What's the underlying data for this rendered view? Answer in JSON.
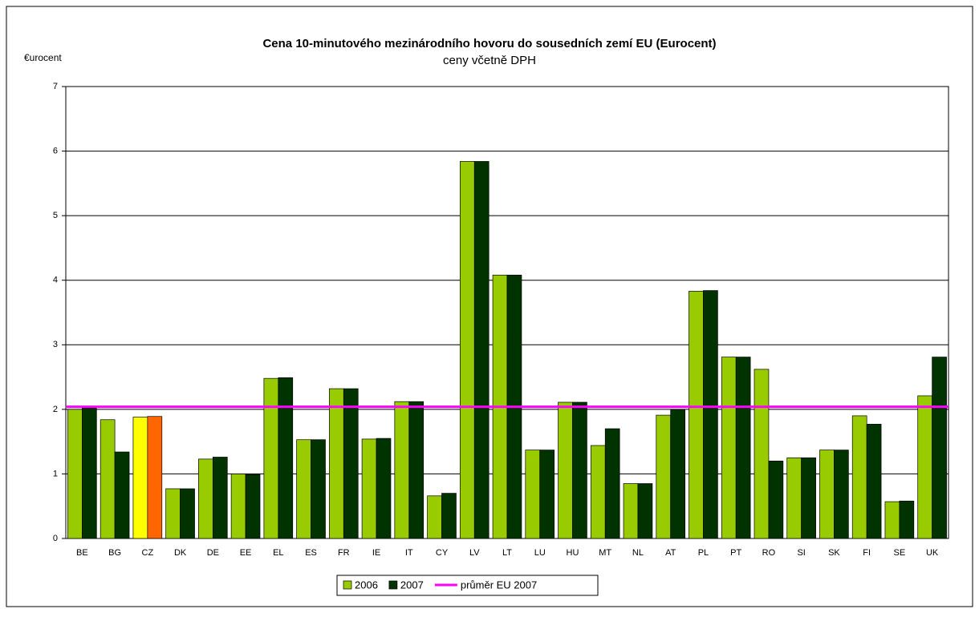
{
  "chart_data": {
    "type": "bar",
    "title": "Cena 10-minutového mezinárodního hovoru do sousedních zemí EU (Eurocent)",
    "subtitle": "ceny včetně DPH",
    "y_label": "€urocent",
    "categories": [
      "BE",
      "BG",
      "CZ",
      "DK",
      "DE",
      "EE",
      "EL",
      "ES",
      "FR",
      "IE",
      "IT",
      "CY",
      "LV",
      "LT",
      "LU",
      "HU",
      "MT",
      "NL",
      "AT",
      "PL",
      "PT",
      "RO",
      "SI",
      "SK",
      "FI",
      "SE",
      "UK"
    ],
    "series": [
      {
        "name": "2006",
        "color": "#99cc00",
        "colors": [
          "#99cc00",
          "#99cc00",
          "#ffff00",
          "#99cc00",
          "#99cc00",
          "#99cc00",
          "#99cc00",
          "#99cc00",
          "#99cc00",
          "#99cc00",
          "#99cc00",
          "#99cc00",
          "#99cc00",
          "#99cc00",
          "#99cc00",
          "#99cc00",
          "#99cc00",
          "#99cc00",
          "#99cc00",
          "#99cc00",
          "#99cc00",
          "#99cc00",
          "#99cc00",
          "#99cc00",
          "#99cc00",
          "#99cc00",
          "#99cc00"
        ],
        "values": [
          2.0,
          1.84,
          1.88,
          0.77,
          1.23,
          1.0,
          2.48,
          1.53,
          2.32,
          1.54,
          2.12,
          0.66,
          5.84,
          4.08,
          1.37,
          2.11,
          1.44,
          0.85,
          1.91,
          3.83,
          2.81,
          2.62,
          1.25,
          1.37,
          1.9,
          0.57,
          2.21
        ]
      },
      {
        "name": "2007",
        "color": "#003300",
        "colors": [
          "#003300",
          "#003300",
          "#ff6600",
          "#003300",
          "#003300",
          "#003300",
          "#003300",
          "#003300",
          "#003300",
          "#003300",
          "#003300",
          "#003300",
          "#003300",
          "#003300",
          "#003300",
          "#003300",
          "#003300",
          "#003300",
          "#003300",
          "#003300",
          "#003300",
          "#003300",
          "#003300",
          "#003300",
          "#003300",
          "#003300",
          "#003300"
        ],
        "values": [
          2.02,
          1.34,
          1.89,
          0.77,
          1.26,
          0.99,
          2.49,
          1.53,
          2.32,
          1.55,
          2.12,
          0.7,
          5.84,
          4.08,
          1.37,
          2.11,
          1.7,
          0.85,
          2.0,
          3.84,
          2.81,
          1.2,
          1.25,
          1.37,
          1.77,
          0.58,
          2.81
        ]
      }
    ],
    "average": {
      "name": "průměr EU 2007",
      "color": "#ff00ff",
      "value": 2.04
    },
    "ylim": [
      0,
      7
    ],
    "yticks": [
      0,
      1,
      2,
      3,
      4,
      5,
      6,
      7
    ],
    "grid": true
  }
}
